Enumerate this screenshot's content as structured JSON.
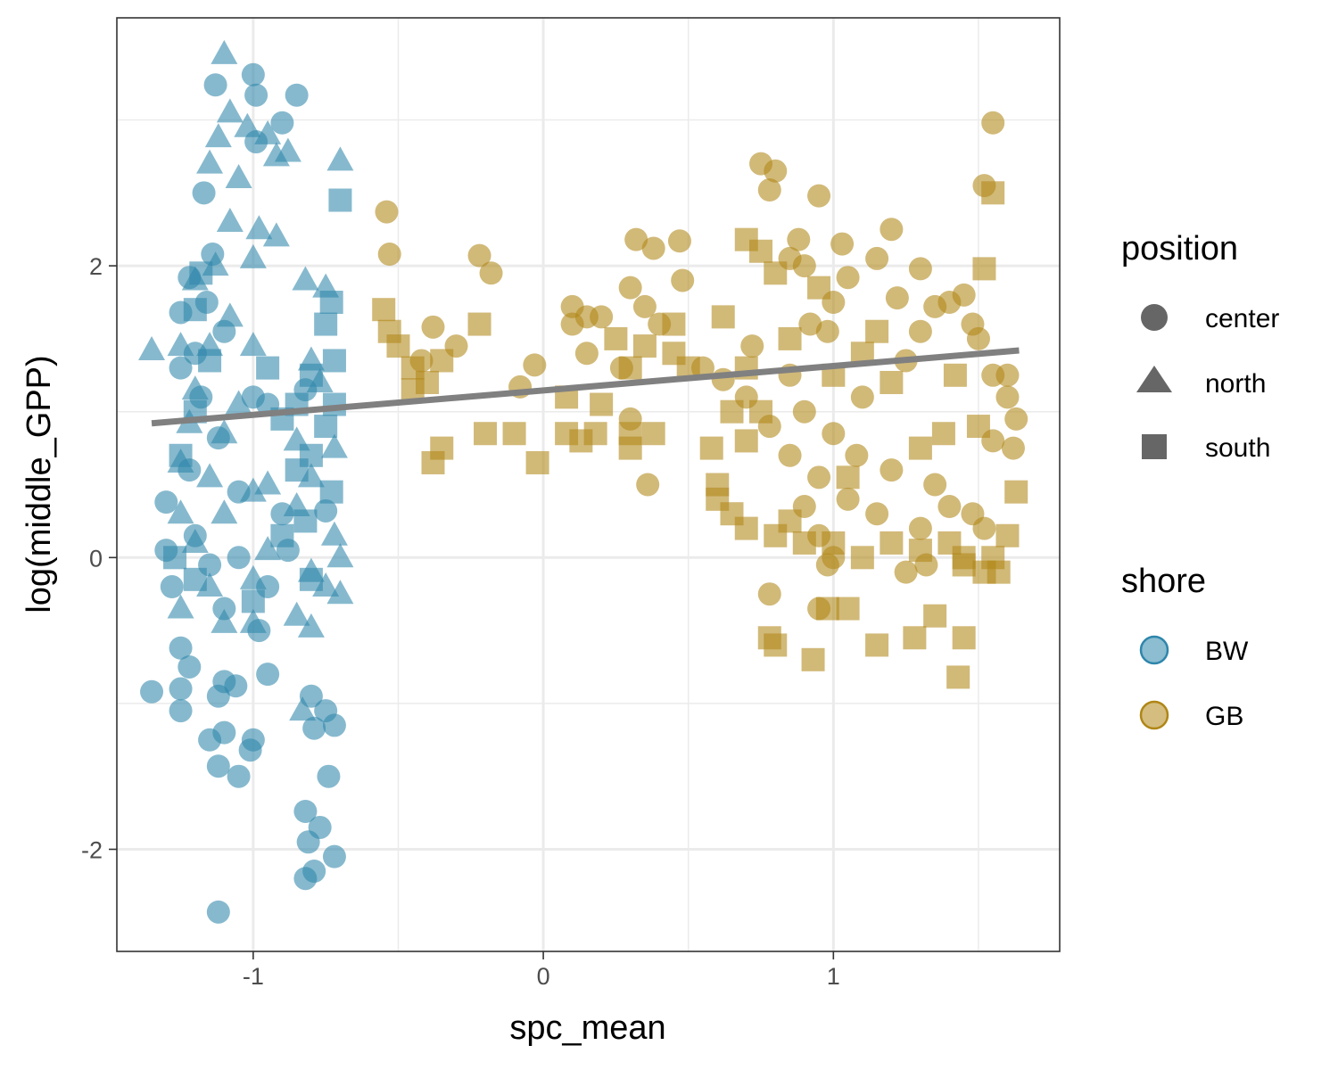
{
  "chart_data": {
    "type": "scatter",
    "xlabel": "spc_mean",
    "ylabel": "log(middle_GPP)",
    "xlim": [
      -1.47,
      1.78
    ],
    "ylim": [
      -2.7,
      3.7
    ],
    "x_ticks": [
      -1,
      0,
      1
    ],
    "y_ticks": [
      -2,
      0,
      2
    ],
    "x_tick_labels": [
      "-1",
      "0",
      "1"
    ],
    "y_tick_labels": [
      "-2",
      "0",
      "2"
    ],
    "grid": true,
    "legend_position": "right",
    "colors": {
      "BW": "#2E86AB",
      "GB": "#B08616",
      "trend": "#808080"
    },
    "legends": [
      {
        "title": "position",
        "entries": [
          {
            "label": "center",
            "shape": "circle"
          },
          {
            "label": "north",
            "shape": "triangle"
          },
          {
            "label": "south",
            "shape": "square"
          }
        ]
      },
      {
        "title": "shore",
        "entries": [
          {
            "label": "BW",
            "color": "#2E86AB"
          },
          {
            "label": "GB",
            "color": "#B08616"
          }
        ]
      }
    ],
    "trend_line": {
      "x": [
        -1.35,
        1.64
      ],
      "y": [
        0.92,
        1.42
      ]
    },
    "series": [
      {
        "shore": "BW",
        "position": "center",
        "points": [
          [
            -1.13,
            3.24
          ],
          [
            -1.0,
            3.31
          ],
          [
            -0.99,
            3.17
          ],
          [
            -0.85,
            3.17
          ],
          [
            -0.9,
            2.98
          ],
          [
            -0.99,
            2.85
          ],
          [
            -1.17,
            2.5
          ],
          [
            -1.14,
            2.08
          ],
          [
            -1.22,
            1.92
          ],
          [
            -1.16,
            1.75
          ],
          [
            -1.1,
            1.55
          ],
          [
            -1.25,
            1.68
          ],
          [
            -1.2,
            1.4
          ],
          [
            -1.18,
            1.1
          ],
          [
            -1.0,
            1.1
          ],
          [
            -0.95,
            1.05
          ],
          [
            -0.82,
            1.15
          ],
          [
            -1.25,
            1.3
          ],
          [
            -1.12,
            0.82
          ],
          [
            -1.22,
            0.6
          ],
          [
            -1.3,
            0.38
          ],
          [
            -1.05,
            0.45
          ],
          [
            -0.9,
            0.3
          ],
          [
            -0.75,
            0.32
          ],
          [
            -1.2,
            0.15
          ],
          [
            -1.15,
            -0.05
          ],
          [
            -1.28,
            -0.2
          ],
          [
            -1.1,
            -0.35
          ],
          [
            -0.98,
            -0.5
          ],
          [
            -1.25,
            -0.62
          ],
          [
            -1.22,
            -0.75
          ],
          [
            -1.1,
            -0.85
          ],
          [
            -1.35,
            -0.92
          ],
          [
            -1.25,
            -0.9
          ],
          [
            -1.25,
            -1.05
          ],
          [
            -1.12,
            -0.95
          ],
          [
            -1.06,
            -0.88
          ],
          [
            -0.95,
            -0.8
          ],
          [
            -1.15,
            -1.25
          ],
          [
            -1.1,
            -1.2
          ],
          [
            -1.0,
            -1.25
          ],
          [
            -1.01,
            -1.32
          ],
          [
            -1.12,
            -1.43
          ],
          [
            -1.05,
            -1.5
          ],
          [
            -0.8,
            -0.95
          ],
          [
            -0.75,
            -1.05
          ],
          [
            -0.79,
            -1.17
          ],
          [
            -0.72,
            -1.15
          ],
          [
            -0.74,
            -1.5
          ],
          [
            -0.82,
            -1.74
          ],
          [
            -0.77,
            -1.85
          ],
          [
            -0.81,
            -1.95
          ],
          [
            -0.72,
            -2.05
          ],
          [
            -0.82,
            -2.2
          ],
          [
            -0.79,
            -2.15
          ],
          [
            -1.12,
            -2.43
          ],
          [
            -1.05,
            0.0
          ],
          [
            -0.95,
            -0.2
          ],
          [
            -1.3,
            0.05
          ],
          [
            -0.88,
            0.05
          ]
        ]
      },
      {
        "shore": "BW",
        "position": "north",
        "points": [
          [
            -1.1,
            3.45
          ],
          [
            -1.08,
            3.05
          ],
          [
            -1.02,
            2.95
          ],
          [
            -0.95,
            2.9
          ],
          [
            -1.12,
            2.88
          ],
          [
            -0.92,
            2.75
          ],
          [
            -0.88,
            2.78
          ],
          [
            -1.15,
            2.7
          ],
          [
            -1.05,
            2.6
          ],
          [
            -0.7,
            2.72
          ],
          [
            -1.08,
            2.3
          ],
          [
            -0.98,
            2.25
          ],
          [
            -1.0,
            2.05
          ],
          [
            -0.92,
            2.2
          ],
          [
            -1.13,
            2.0
          ],
          [
            -1.2,
            1.9
          ],
          [
            -0.82,
            1.9
          ],
          [
            -0.75,
            1.85
          ],
          [
            -1.08,
            1.65
          ],
          [
            -1.35,
            1.42
          ],
          [
            -1.25,
            1.45
          ],
          [
            -1.15,
            1.45
          ],
          [
            -1.0,
            1.45
          ],
          [
            -0.8,
            1.35
          ],
          [
            -0.77,
            1.2
          ],
          [
            -1.2,
            1.15
          ],
          [
            -1.05,
            1.05
          ],
          [
            -1.22,
            0.92
          ],
          [
            -1.1,
            0.85
          ],
          [
            -0.85,
            0.8
          ],
          [
            -0.72,
            0.75
          ],
          [
            -1.25,
            0.65
          ],
          [
            -1.15,
            0.55
          ],
          [
            -0.95,
            0.5
          ],
          [
            -0.8,
            0.55
          ],
          [
            -1.0,
            0.45
          ],
          [
            -1.25,
            0.3
          ],
          [
            -1.1,
            0.3
          ],
          [
            -0.85,
            0.35
          ],
          [
            -0.72,
            0.15
          ],
          [
            -1.2,
            0.1
          ],
          [
            -0.95,
            0.05
          ],
          [
            -0.7,
            0.0
          ],
          [
            -1.0,
            -0.15
          ],
          [
            -0.8,
            -0.1
          ],
          [
            -0.75,
            -0.2
          ],
          [
            -0.7,
            -0.25
          ],
          [
            -1.15,
            -0.2
          ],
          [
            -1.25,
            -0.35
          ],
          [
            -1.1,
            -0.45
          ],
          [
            -0.85,
            -0.4
          ],
          [
            -0.8,
            -0.48
          ],
          [
            -1.0,
            -0.45
          ],
          [
            -0.83,
            -1.05
          ]
        ]
      },
      {
        "shore": "BW",
        "position": "south",
        "points": [
          [
            -0.7,
            2.45
          ],
          [
            -0.73,
            1.75
          ],
          [
            -0.75,
            1.6
          ],
          [
            -0.72,
            1.35
          ],
          [
            -0.8,
            1.25
          ],
          [
            -0.85,
            1.05
          ],
          [
            -0.72,
            1.05
          ],
          [
            -0.9,
            0.95
          ],
          [
            -0.75,
            0.9
          ],
          [
            -0.8,
            0.7
          ],
          [
            -0.85,
            0.6
          ],
          [
            -0.73,
            0.45
          ],
          [
            -1.18,
            1.95
          ],
          [
            -1.2,
            1.7
          ],
          [
            -1.15,
            1.35
          ],
          [
            -1.2,
            1.0
          ],
          [
            -1.25,
            0.7
          ],
          [
            -1.27,
            0.0
          ],
          [
            -1.2,
            -0.15
          ],
          [
            -1.0,
            -0.3
          ],
          [
            -0.9,
            0.15
          ],
          [
            -0.8,
            -0.15
          ],
          [
            -0.82,
            0.25
          ],
          [
            -0.95,
            1.3
          ]
        ]
      },
      {
        "shore": "GB",
        "position": "center",
        "points": [
          [
            1.55,
            2.98
          ],
          [
            0.75,
            2.7
          ],
          [
            0.8,
            2.65
          ],
          [
            0.78,
            2.52
          ],
          [
            0.95,
            2.48
          ],
          [
            1.52,
            2.55
          ],
          [
            -0.54,
            2.37
          ],
          [
            -0.53,
            2.08
          ],
          [
            -0.22,
            2.07
          ],
          [
            -0.18,
            1.95
          ],
          [
            0.32,
            2.18
          ],
          [
            0.38,
            2.12
          ],
          [
            0.47,
            2.17
          ],
          [
            0.48,
            1.9
          ],
          [
            1.2,
            2.25
          ],
          [
            1.03,
            2.15
          ],
          [
            1.15,
            2.05
          ],
          [
            0.88,
            2.18
          ],
          [
            0.9,
            2.0
          ],
          [
            0.85,
            2.05
          ],
          [
            1.3,
            1.98
          ],
          [
            1.05,
            1.92
          ],
          [
            1.22,
            1.78
          ],
          [
            1.4,
            1.75
          ],
          [
            1.45,
            1.8
          ],
          [
            1.35,
            1.72
          ],
          [
            0.1,
            1.72
          ],
          [
            0.15,
            1.65
          ],
          [
            0.2,
            1.65
          ],
          [
            0.3,
            1.85
          ],
          [
            0.35,
            1.72
          ],
          [
            0.4,
            1.6
          ],
          [
            0.1,
            1.6
          ],
          [
            -0.38,
            1.58
          ],
          [
            -0.3,
            1.45
          ],
          [
            -0.42,
            1.35
          ],
          [
            -0.03,
            1.32
          ],
          [
            0.27,
            1.3
          ],
          [
            0.15,
            1.4
          ],
          [
            0.55,
            1.3
          ],
          [
            0.72,
            1.45
          ],
          [
            0.62,
            1.22
          ],
          [
            -0.08,
            1.17
          ],
          [
            0.3,
            0.95
          ],
          [
            0.36,
            0.5
          ],
          [
            0.78,
            -0.25
          ],
          [
            0.95,
            -0.35
          ],
          [
            0.98,
            -0.05
          ],
          [
            1.25,
            -0.1
          ],
          [
            1.32,
            -0.05
          ],
          [
            1.48,
            1.6
          ],
          [
            1.5,
            1.5
          ],
          [
            1.55,
            1.25
          ],
          [
            1.6,
            1.25
          ],
          [
            1.6,
            1.1
          ],
          [
            1.63,
            0.95
          ],
          [
            1.55,
            0.8
          ],
          [
            1.62,
            0.75
          ],
          [
            1.48,
            0.3
          ],
          [
            1.52,
            0.2
          ],
          [
            0.9,
            1.0
          ],
          [
            1.0,
            0.85
          ],
          [
            1.1,
            1.1
          ],
          [
            0.85,
            0.7
          ],
          [
            0.95,
            0.55
          ],
          [
            1.05,
            0.4
          ],
          [
            1.2,
            0.6
          ],
          [
            1.15,
            0.3
          ],
          [
            0.95,
            0.15
          ],
          [
            1.0,
            0.0
          ],
          [
            0.7,
            1.1
          ],
          [
            0.78,
            0.9
          ],
          [
            0.85,
            1.25
          ],
          [
            1.25,
            1.35
          ],
          [
            1.3,
            1.55
          ],
          [
            0.92,
            1.6
          ],
          [
            1.0,
            1.75
          ],
          [
            0.98,
            1.55
          ],
          [
            1.08,
            0.7
          ],
          [
            0.9,
            0.35
          ],
          [
            1.3,
            0.2
          ],
          [
            1.35,
            0.5
          ],
          [
            1.4,
            0.35
          ]
        ]
      },
      {
        "shore": "GB",
        "position": "south",
        "points": [
          [
            1.55,
            2.5
          ],
          [
            1.52,
            1.98
          ],
          [
            0.7,
            2.18
          ],
          [
            0.75,
            2.1
          ],
          [
            0.8,
            1.95
          ],
          [
            0.62,
            1.65
          ],
          [
            -0.55,
            1.7
          ],
          [
            -0.53,
            1.55
          ],
          [
            -0.5,
            1.45
          ],
          [
            -0.45,
            1.3
          ],
          [
            -0.4,
            1.2
          ],
          [
            -0.22,
            1.6
          ],
          [
            -0.35,
            1.35
          ],
          [
            -0.45,
            1.15
          ],
          [
            -0.35,
            0.75
          ],
          [
            -0.38,
            0.65
          ],
          [
            -0.2,
            0.85
          ],
          [
            -0.1,
            0.85
          ],
          [
            -0.02,
            0.65
          ],
          [
            0.08,
            0.85
          ],
          [
            0.13,
            0.8
          ],
          [
            0.18,
            0.85
          ],
          [
            0.08,
            1.1
          ],
          [
            0.2,
            1.05
          ],
          [
            0.3,
            1.3
          ],
          [
            0.25,
            1.5
          ],
          [
            0.35,
            1.45
          ],
          [
            0.45,
            1.6
          ],
          [
            0.45,
            1.4
          ],
          [
            0.5,
            1.3
          ],
          [
            0.3,
            0.85
          ],
          [
            0.3,
            0.75
          ],
          [
            0.38,
            0.85
          ],
          [
            0.6,
            0.5
          ],
          [
            0.6,
            0.4
          ],
          [
            0.65,
            0.3
          ],
          [
            0.7,
            0.2
          ],
          [
            0.8,
            0.15
          ],
          [
            0.85,
            0.25
          ],
          [
            0.9,
            0.1
          ],
          [
            1.0,
            0.1
          ],
          [
            1.1,
            0.0
          ],
          [
            1.2,
            0.1
          ],
          [
            1.3,
            0.05
          ],
          [
            1.4,
            0.1
          ],
          [
            1.45,
            0.0
          ],
          [
            1.55,
            0.0
          ],
          [
            1.6,
            0.15
          ],
          [
            1.63,
            0.45
          ],
          [
            1.52,
            -0.1
          ],
          [
            1.57,
            -0.1
          ],
          [
            1.45,
            -0.05
          ],
          [
            1.35,
            -0.4
          ],
          [
            1.28,
            -0.55
          ],
          [
            1.15,
            -0.6
          ],
          [
            1.45,
            -0.55
          ],
          [
            1.43,
            -0.82
          ],
          [
            0.78,
            -0.55
          ],
          [
            0.8,
            -0.6
          ],
          [
            0.93,
            -0.7
          ],
          [
            0.98,
            -0.35
          ],
          [
            1.05,
            -0.35
          ],
          [
            0.7,
            1.3
          ],
          [
            0.75,
            1.0
          ],
          [
            0.7,
            0.8
          ],
          [
            1.0,
            1.25
          ],
          [
            1.1,
            1.4
          ],
          [
            1.15,
            1.55
          ],
          [
            1.2,
            1.2
          ],
          [
            1.3,
            0.75
          ],
          [
            1.38,
            0.85
          ],
          [
            0.95,
            1.85
          ],
          [
            0.65,
            1.0
          ],
          [
            0.58,
            0.75
          ],
          [
            0.85,
            1.5
          ],
          [
            1.05,
            0.55
          ],
          [
            1.5,
            0.9
          ],
          [
            1.42,
            1.25
          ]
        ]
      }
    ]
  }
}
